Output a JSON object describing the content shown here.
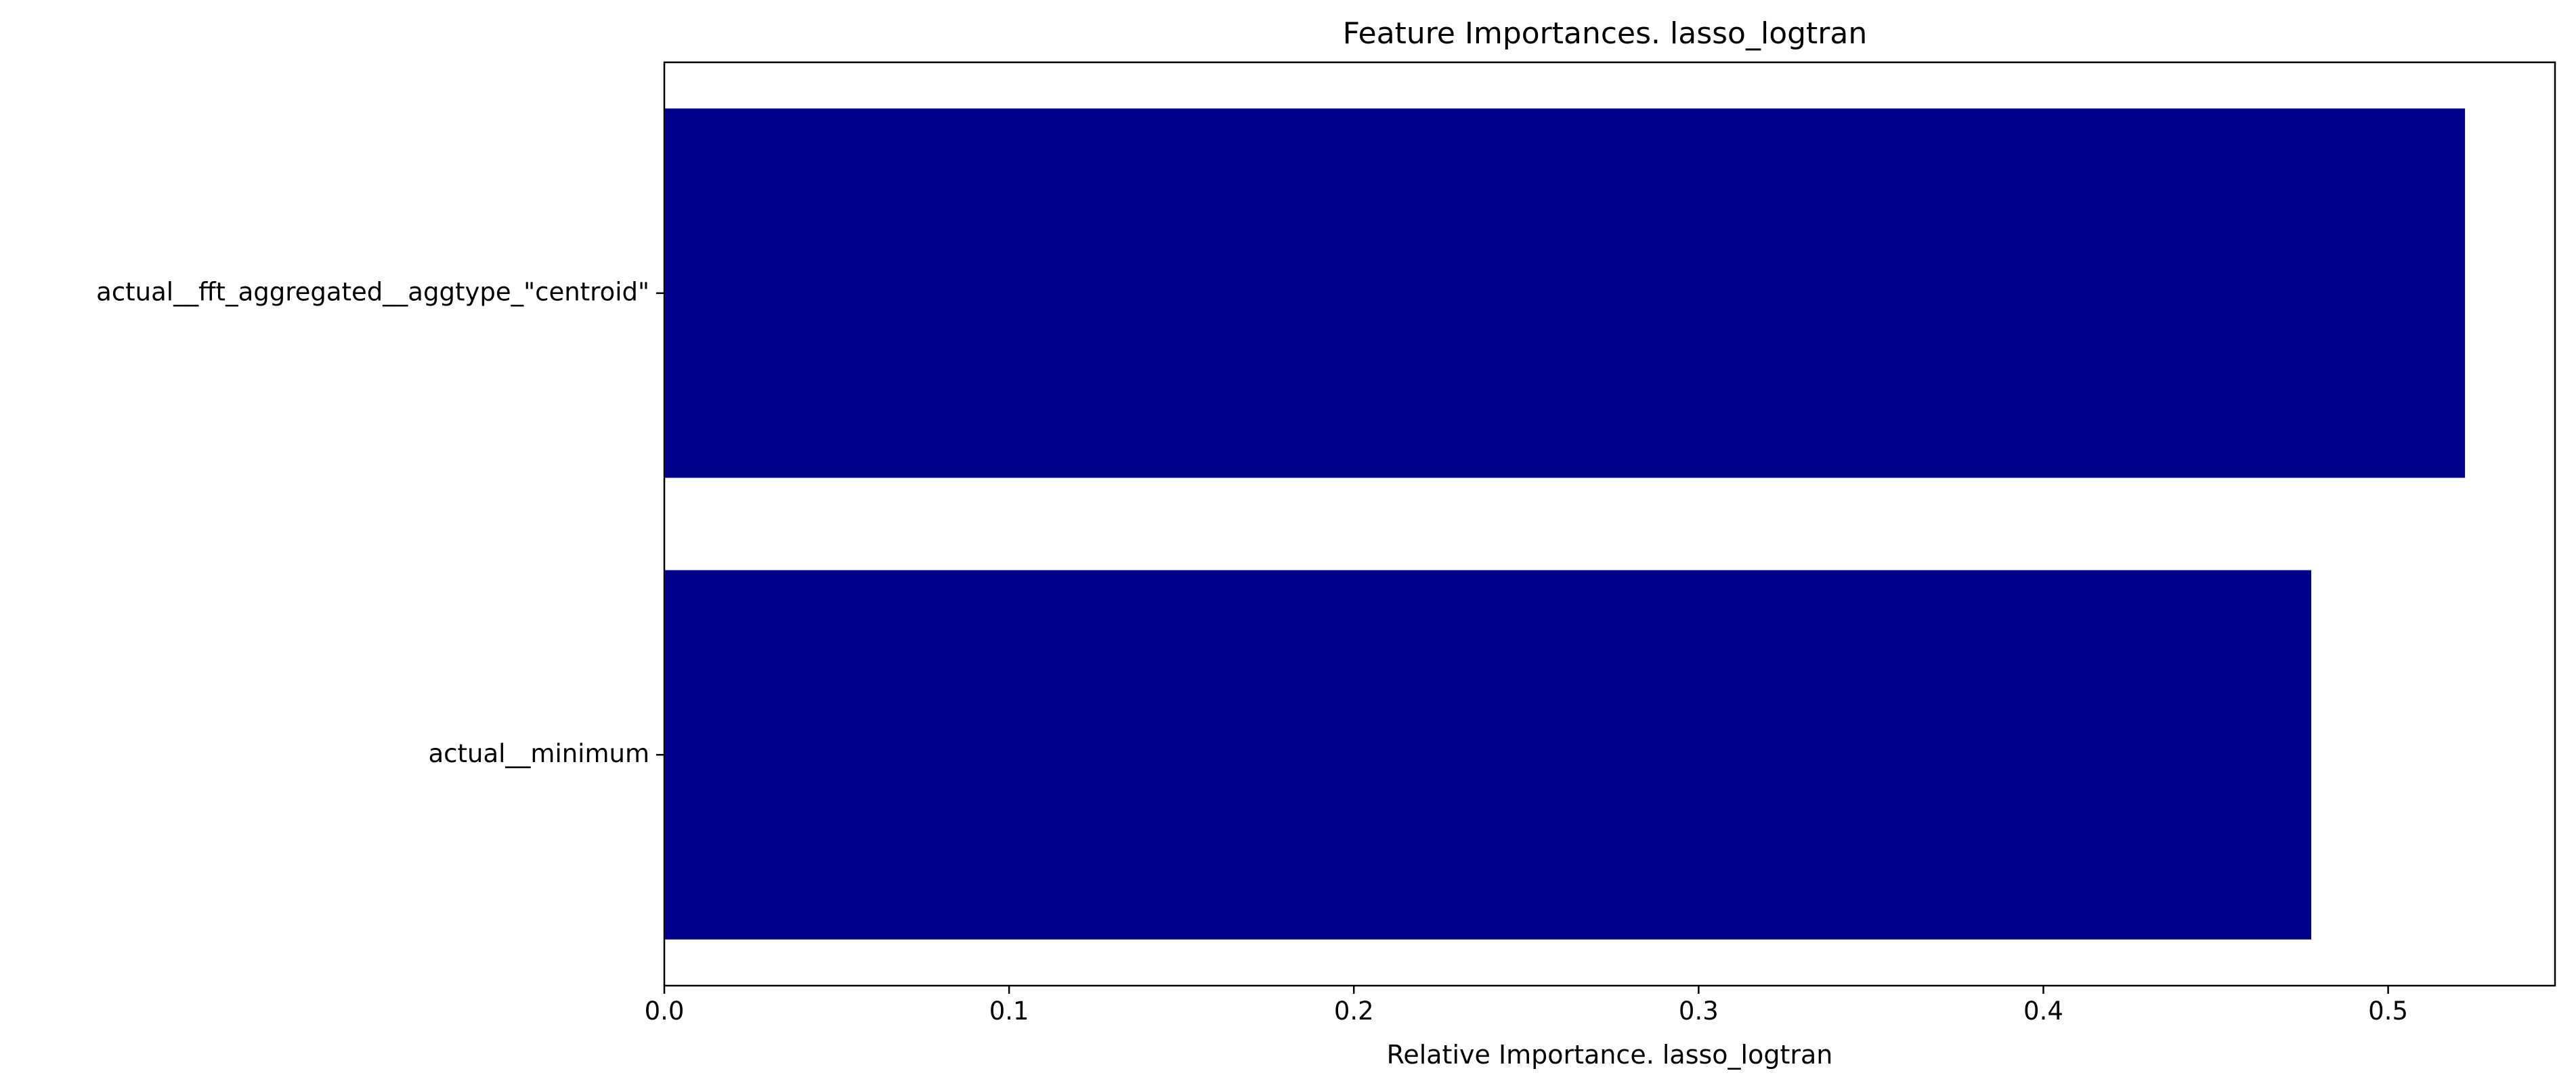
{
  "chart_data": {
    "type": "bar",
    "orientation": "horizontal",
    "title": "Feature Importances. lasso_logtran",
    "xlabel": "Relative Importance. lasso_logtran",
    "ylabel": "",
    "categories": [
      "actual__fft_aggregated__aggtype_\"centroid\"",
      "actual__minimum"
    ],
    "values": [
      0.5223,
      0.4777
    ],
    "xlim": [
      0,
      0.5484
    ],
    "xticks": [
      0.0,
      0.1,
      0.2,
      0.3,
      0.4,
      0.5
    ],
    "xtick_labels": [
      "0.0",
      "0.1",
      "0.2",
      "0.3",
      "0.4",
      "0.5"
    ],
    "bar_color": "#00008b",
    "grid": false,
    "legend": "none"
  }
}
